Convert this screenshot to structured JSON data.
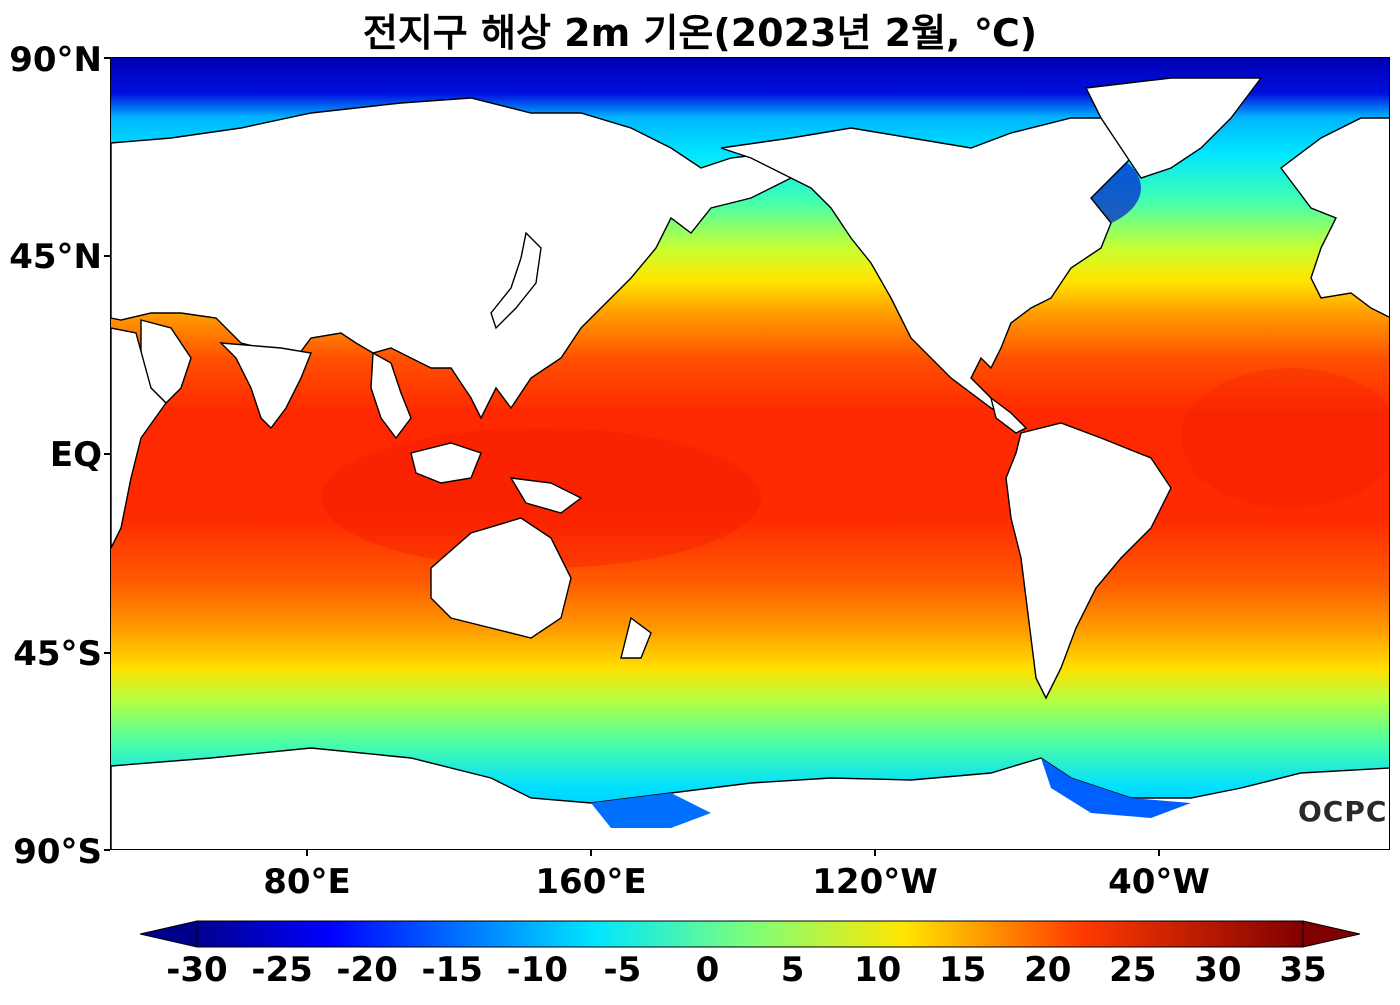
{
  "title": "전지구 해상 2m 기온(2023년 2월, ℃)",
  "logo": "OCPC",
  "lat_labels": [
    "90°N",
    "45°N",
    "EQ",
    "45°S",
    "90°S"
  ],
  "lon_labels": [
    "80°E",
    "160°E",
    "120°W",
    "40°W"
  ],
  "colorbar": {
    "min": -30,
    "max": 35,
    "ticks": [
      "-30",
      "-25",
      "-20",
      "-15",
      "-10",
      "-5",
      "0",
      "5",
      "10",
      "15",
      "20",
      "25",
      "30",
      "35"
    ],
    "colormap": "jet",
    "extend": "both"
  },
  "colors": {
    "polar": "#0000c8",
    "cold": "#0064ff",
    "cool": "#00e6ff",
    "mild": "#9aff5a",
    "temperate": "#ffdc00",
    "warm": "#ff8c00",
    "tropical": "#ff2800",
    "land": "#ffffff"
  }
}
